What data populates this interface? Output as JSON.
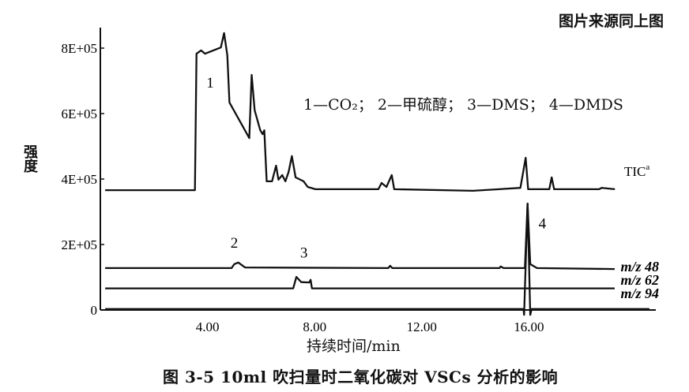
{
  "source_note": "图片来源同上图",
  "caption": "图 3-5   10ml 吹扫量时二氧化碳对 VSCs 分析的影响",
  "chart_data": {
    "type": "line",
    "title": "",
    "xlabel": "持续时间/min",
    "ylabel": "强度",
    "xlim": [
      0,
      20.5
    ],
    "ylim": [
      0,
      850000
    ],
    "x_ticks": [
      "4.00",
      "8.00",
      "12.00",
      "16.00"
    ],
    "x_tick_values": [
      4,
      8,
      12,
      16
    ],
    "y_ticks": [
      "0",
      "2E+05",
      "4E+05",
      "6E+05",
      "8E+05"
    ],
    "y_tick_values": [
      0,
      200000,
      400000,
      600000,
      800000
    ],
    "grid": false,
    "legend_text": "1—CO₂； 2—甲硫醇； 3—DMS； 4—DMDS",
    "peak_labels": [
      {
        "label": "1",
        "x": 4.1,
        "y": 680000
      },
      {
        "label": "2",
        "x": 5.0,
        "y": 190000
      },
      {
        "label": "3",
        "x": 7.6,
        "y": 160000
      },
      {
        "label": "4",
        "x": 16.5,
        "y": 250000
      }
    ],
    "series": [
      {
        "name": "TIC",
        "superscript": "a",
        "points": [
          [
            0.18,
            366000
          ],
          [
            3.53,
            366000
          ],
          [
            3.59,
            783000
          ],
          [
            3.76,
            793000
          ],
          [
            3.91,
            783000
          ],
          [
            4.5,
            802000
          ],
          [
            4.62,
            846000
          ],
          [
            4.74,
            778000
          ],
          [
            4.82,
            634000
          ],
          [
            5.56,
            525000
          ],
          [
            5.65,
            718000
          ],
          [
            5.76,
            610000
          ],
          [
            5.97,
            549000
          ],
          [
            6.06,
            537000
          ],
          [
            6.12,
            549000
          ],
          [
            6.21,
            393000
          ],
          [
            6.41,
            393000
          ],
          [
            6.56,
            441000
          ],
          [
            6.65,
            398000
          ],
          [
            6.79,
            412000
          ],
          [
            6.91,
            393000
          ],
          [
            7.03,
            422000
          ],
          [
            7.15,
            470000
          ],
          [
            7.29,
            405000
          ],
          [
            7.59,
            393000
          ],
          [
            7.74,
            376000
          ],
          [
            8.03,
            369000
          ],
          [
            10.38,
            369000
          ],
          [
            10.5,
            388000
          ],
          [
            10.68,
            376000
          ],
          [
            10.88,
            412000
          ],
          [
            10.97,
            369000
          ],
          [
            13.91,
            364000
          ],
          [
            15.68,
            373000
          ],
          [
            15.88,
            465000
          ],
          [
            15.97,
            369000
          ],
          [
            16.76,
            369000
          ],
          [
            16.85,
            405000
          ],
          [
            16.94,
            369000
          ],
          [
            18.62,
            369000
          ],
          [
            18.71,
            373000
          ],
          [
            19.21,
            369000
          ]
        ]
      },
      {
        "name": "m/z 48",
        "points": [
          [
            0.18,
            128000
          ],
          [
            4.9,
            128000
          ],
          [
            5.0,
            140000
          ],
          [
            5.15,
            145000
          ],
          [
            5.4,
            130000
          ],
          [
            10.75,
            128000
          ],
          [
            10.82,
            135000
          ],
          [
            10.9,
            128000
          ],
          [
            14.9,
            128000
          ],
          [
            14.95,
            133000
          ],
          [
            15.05,
            128000
          ],
          [
            15.85,
            128000
          ],
          [
            15.95,
            325000
          ],
          [
            16.05,
            140000
          ],
          [
            16.3,
            128000
          ],
          [
            19.2,
            125000
          ]
        ]
      },
      {
        "name": "m/z 62",
        "points": [
          [
            0.18,
            66000
          ],
          [
            7.2,
            66000
          ],
          [
            7.32,
            101000
          ],
          [
            7.5,
            85000
          ],
          [
            7.8,
            84000
          ],
          [
            7.85,
            92000
          ],
          [
            7.9,
            66000
          ],
          [
            15.9,
            66000
          ],
          [
            19.2,
            66000
          ]
        ]
      },
      {
        "name": "m/z 94",
        "points": [
          [
            0.18,
            3000
          ],
          [
            15.8,
            3000
          ],
          [
            15.82,
            -15000
          ],
          [
            15.95,
            325000
          ],
          [
            16.05,
            -15000
          ],
          [
            16.1,
            3000
          ],
          [
            20.5,
            3000
          ]
        ]
      }
    ]
  },
  "colors": {
    "ink": "#111111",
    "background": "#ffffff"
  }
}
